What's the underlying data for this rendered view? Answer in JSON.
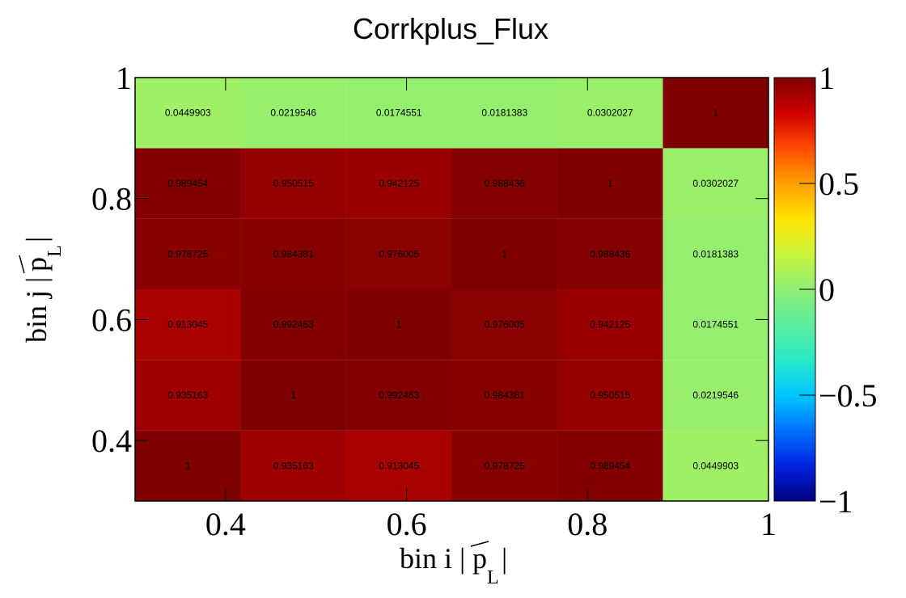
{
  "chart_data": {
    "type": "heatmap",
    "title": "Corrkplus_Flux",
    "xlabel": {
      "text": "bin i |p|",
      "vector": "p",
      "subscript": "L"
    },
    "ylabel": {
      "text": "bin j |p|",
      "vector": "p",
      "subscript": "L"
    },
    "x_edges": [
      0.3,
      0.4167,
      0.5333,
      0.65,
      0.7667,
      0.8833,
      1.0
    ],
    "y_edges": [
      0.3,
      0.4167,
      0.5333,
      0.65,
      0.7667,
      0.8833,
      1.0
    ],
    "xlim": [
      0.3,
      1.0
    ],
    "ylim": [
      0.3,
      1.0
    ],
    "x_ticks": [
      {
        "value": 0.4,
        "label": "0.4"
      },
      {
        "value": 0.6,
        "label": "0.6"
      },
      {
        "value": 0.8,
        "label": "0.8"
      },
      {
        "value": 1.0,
        "label": "1"
      }
    ],
    "y_ticks": [
      {
        "value": 0.4,
        "label": "0.4"
      },
      {
        "value": 0.6,
        "label": "0.6"
      },
      {
        "value": 0.8,
        "label": "0.8"
      },
      {
        "value": 1.0,
        "label": "1"
      }
    ],
    "z_range": [
      -1,
      1
    ],
    "colorbar_ticks": [
      {
        "value": 1,
        "label": "1"
      },
      {
        "value": 0.5,
        "label": "0.5"
      },
      {
        "value": 0,
        "label": "0"
      },
      {
        "value": -0.5,
        "label": "−0.5"
      },
      {
        "value": -1,
        "label": "−1"
      }
    ],
    "cell_values": [
      [
        1,
        0.935163,
        0.913045,
        0.978725,
        0.989454,
        0.0449903
      ],
      [
        0.935163,
        1,
        0.992463,
        0.984381,
        0.950515,
        0.0219546
      ],
      [
        0.913045,
        0.992463,
        1,
        0.976005,
        0.942125,
        0.0174551
      ],
      [
        0.978725,
        0.984381,
        0.976005,
        1,
        0.988436,
        0.0181383
      ],
      [
        0.989454,
        0.950515,
        0.942125,
        0.988436,
        1,
        0.0302027
      ],
      [
        0.0449903,
        0.0219546,
        0.0174551,
        0.0181383,
        0.0302027,
        1
      ]
    ],
    "cell_labels": [
      [
        "1",
        "0.935163",
        "0.913045",
        "0.978725",
        "0.989454",
        "0.0449903"
      ],
      [
        "0.935163",
        "1",
        "0.992463",
        "0.984381",
        "0.950515",
        "0.0219546"
      ],
      [
        "0.913045",
        "0.992463",
        "1",
        "0.976005",
        "0.942125",
        "0.0174551"
      ],
      [
        "0.978725",
        "0.984381",
        "0.976005",
        "1",
        "0.988436",
        "0.0181383"
      ],
      [
        "0.989454",
        "0.950515",
        "0.942125",
        "0.988436",
        "1",
        "0.0302027"
      ],
      [
        "0.0449903",
        "0.0219546",
        "0.0174551",
        "0.0181383",
        "0.0302027",
        "1"
      ]
    ],
    "colormap": [
      "#00007f",
      "#0022e0",
      "#0072ff",
      "#00c6ff",
      "#29e9c8",
      "#5cee9e",
      "#8fee74",
      "#c9f43a",
      "#ffe300",
      "#ffa000",
      "#ff4a00",
      "#d00000",
      "#7f0000"
    ],
    "grid": false,
    "legend": "colorbar-right"
  }
}
